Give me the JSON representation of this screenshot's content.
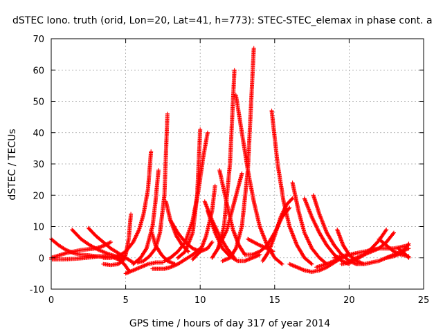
{
  "chart_data": {
    "type": "scatter",
    "title": "dSTEC Iono. truth (orid, Lon=20, Lat=41, h=773): STEC-STEC_elemax in phase cont. a",
    "xlabel": "GPS time / hours of day 317 of year 2014",
    "ylabel": "dSTEC  / TECUs",
    "xlim": [
      0,
      25
    ],
    "ylim": [
      -10,
      70
    ],
    "x_ticks": [
      "0",
      "5",
      "10",
      "15",
      "20",
      "25"
    ],
    "y_ticks": [
      "-10",
      "0",
      "10",
      "20",
      "30",
      "40",
      "50",
      "60",
      "70"
    ],
    "grid": true,
    "legend": "none",
    "marker": "+",
    "color": "#ff0000",
    "series": [
      {
        "x": [
          0.0,
          0.5,
          1.0,
          1.5,
          2.0,
          2.5,
          3.0,
          3.5,
          4.0
        ],
        "y": [
          6,
          4,
          2.5,
          1.5,
          1,
          0.8,
          0.5,
          0.3,
          0
        ]
      },
      {
        "x": [
          0.0,
          0.8,
          1.6,
          2.4,
          3.2,
          4.0,
          4.5,
          4.9,
          5.2
        ],
        "y": [
          -0.5,
          -0.5,
          -0.3,
          0,
          0.5,
          0.5,
          -0.5,
          -2,
          -4
        ]
      },
      {
        "x": [
          0.0,
          1.0,
          2.0,
          3.0,
          3.5,
          4.0
        ],
        "y": [
          0,
          1.5,
          2.5,
          3,
          3.8,
          5
        ]
      },
      {
        "x": [
          1.4,
          2.0,
          2.6,
          3.2,
          3.8,
          4.4,
          4.9
        ],
        "y": [
          9,
          6,
          4,
          2.5,
          1.3,
          0.4,
          -0.5
        ]
      },
      {
        "x": [
          2.5,
          3.0,
          3.5,
          4.0,
          4.5,
          5.0,
          5.5
        ],
        "y": [
          9.5,
          7,
          5,
          3,
          1.5,
          0,
          -1.5
        ]
      },
      {
        "x": [
          3.5,
          4.0,
          4.5,
          4.8,
          5.0,
          5.2,
          5.35
        ],
        "y": [
          -2,
          -2.3,
          -2,
          -1,
          1,
          6,
          14
        ]
      },
      {
        "x": [
          3.5,
          4.0,
          4.5,
          5.0,
          5.5,
          5.9,
          6.2,
          6.5,
          6.7
        ],
        "y": [
          0,
          0,
          0.5,
          2,
          5,
          9,
          14,
          22,
          34
        ]
      },
      {
        "x": [
          5.0,
          5.5,
          6.0,
          6.5,
          7.0,
          7.5
        ],
        "y": [
          -5,
          -4,
          -3,
          -2,
          -1.5,
          -1.5
        ]
      },
      {
        "x": [
          5.5,
          6.0,
          6.4,
          6.8,
          7.0,
          7.2
        ],
        "y": [
          -2,
          0,
          3,
          10,
          18,
          28
        ]
      },
      {
        "x": [
          5.8,
          6.2,
          6.6,
          7.0,
          7.3,
          7.6,
          7.8
        ],
        "y": [
          -1.5,
          -1,
          0.5,
          3,
          8,
          20,
          46
        ]
      },
      {
        "x": [
          6.7,
          7.0,
          7.4,
          7.8,
          8.3
        ],
        "y": [
          9,
          4,
          1,
          -1,
          -2
        ]
      },
      {
        "x": [
          6.8,
          7.2,
          7.6,
          8.0,
          8.5,
          9.0,
          9.5,
          10.0
        ],
        "y": [
          -3.5,
          -3.5,
          -3.5,
          -3,
          -2,
          -0.5,
          1,
          3
        ]
      },
      {
        "x": [
          7.7,
          8.0,
          8.4,
          8.8,
          9.2
        ],
        "y": [
          18,
          12,
          7,
          4,
          2
        ]
      },
      {
        "x": [
          7.6,
          8.0,
          8.5,
          9.0,
          9.5,
          9.9,
          10.2,
          10.5
        ],
        "y": [
          -1,
          0,
          2,
          5,
          12,
          22,
          32,
          40
        ]
      },
      {
        "x": [
          8.5,
          9.0,
          9.5,
          9.8,
          10.0
        ],
        "y": [
          0,
          2,
          8,
          20,
          41
        ]
      },
      {
        "x": [
          8.0,
          8.5,
          9.0,
          9.5,
          10.0,
          10.5,
          10.8
        ],
        "y": [
          12,
          8,
          5,
          3,
          2,
          3,
          5
        ]
      },
      {
        "x": [
          9.5,
          10.0,
          10.4,
          10.8,
          11.0
        ],
        "y": [
          -0.5,
          2,
          7,
          15,
          23
        ]
      },
      {
        "x": [
          10.3,
          10.8,
          11.3,
          11.8,
          12.3
        ],
        "y": [
          18,
          12,
          7,
          3,
          0
        ]
      },
      {
        "x": [
          10.5,
          11.0,
          11.5,
          12.0,
          12.5,
          13.0,
          13.5,
          14.0
        ],
        "y": [
          15,
          8,
          3,
          0.5,
          -1,
          -1,
          0,
          1
        ]
      },
      {
        "x": [
          10.8,
          11.2,
          11.6,
          12.0,
          12.3
        ],
        "y": [
          0,
          3,
          10,
          30,
          60
        ]
      },
      {
        "x": [
          11.3,
          11.8,
          12.2,
          12.6,
          13.0
        ],
        "y": [
          28,
          17,
          9,
          4,
          1
        ]
      },
      {
        "x": [
          11.5,
          12.0,
          12.4,
          12.8,
          13.2,
          13.6
        ],
        "y": [
          -1,
          0,
          3,
          10,
          28,
          67
        ]
      },
      {
        "x": [
          12.4,
          12.8,
          13.2,
          13.6,
          14.0,
          14.5,
          15.0,
          15.5
        ],
        "y": [
          52,
          40,
          28,
          18,
          10,
          4,
          0,
          -2
        ]
      },
      {
        "x": [
          11.2,
          11.8,
          12.3,
          12.8
        ],
        "y": [
          3,
          9,
          18,
          27
        ]
      },
      {
        "x": [
          13.2,
          14.0,
          14.5,
          14.9
        ],
        "y": [
          6,
          4,
          3,
          2
        ]
      },
      {
        "x": [
          13.0,
          13.5,
          14.0,
          14.5,
          15.0,
          15.5,
          16.0
        ],
        "y": [
          1,
          1,
          2,
          4,
          8,
          13,
          16
        ]
      },
      {
        "x": [
          14.2,
          14.6,
          15.0,
          15.4,
          15.8,
          16.2
        ],
        "y": [
          -1,
          2,
          7,
          13,
          17,
          19
        ]
      },
      {
        "x": [
          14.8,
          15.2,
          15.6,
          16.0,
          16.5,
          17.0,
          17.5
        ],
        "y": [
          47,
          30,
          18,
          10,
          4,
          0,
          -2
        ]
      },
      {
        "x": [
          16.2,
          16.6,
          17.0,
          17.5,
          18.0,
          18.5
        ],
        "y": [
          24,
          15,
          8,
          3,
          0,
          -2
        ]
      },
      {
        "x": [
          16.0,
          16.5,
          17.0,
          17.5,
          18.0,
          18.5,
          19.0,
          19.5
        ],
        "y": [
          -2,
          -3,
          -4,
          -4.5,
          -4,
          -3,
          -1.5,
          0
        ]
      },
      {
        "x": [
          17.0,
          17.5,
          18.0,
          18.5,
          19.0,
          19.5,
          20.0
        ],
        "y": [
          19,
          13,
          8,
          4,
          1,
          -1,
          -2
        ]
      },
      {
        "x": [
          17.6,
          18.0,
          18.5,
          19.0,
          19.5,
          20.0,
          20.5
        ],
        "y": [
          20,
          14,
          8,
          4,
          1,
          -1,
          -2
        ]
      },
      {
        "x": [
          17.8,
          18.5,
          19.0,
          19.5,
          20.0
        ],
        "y": [
          -3,
          -2,
          -1,
          0,
          1
        ]
      },
      {
        "x": [
          19.2,
          19.6,
          20.0,
          20.5,
          21.0
        ],
        "y": [
          9,
          4,
          1,
          -1,
          -2
        ]
      },
      {
        "x": [
          19.0,
          20.0,
          21.0,
          22.0,
          23.0,
          24.0
        ],
        "y": [
          0,
          1,
          2,
          3,
          3,
          4
        ]
      },
      {
        "x": [
          19.5,
          20.0,
          20.5,
          21.0,
          21.5,
          22.0,
          22.5
        ],
        "y": [
          -2,
          -1.5,
          -0.5,
          1,
          3,
          5.5,
          9
        ]
      },
      {
        "x": [
          20.0,
          20.5,
          21.0,
          21.5,
          22.0,
          22.5,
          23.0
        ],
        "y": [
          -1,
          0,
          1,
          2,
          3,
          5,
          8
        ]
      },
      {
        "x": [
          20.5,
          21.0,
          21.5,
          22.0,
          22.5,
          23.0,
          23.5,
          24.0
        ],
        "y": [
          -2,
          -2,
          -1.5,
          -1,
          0,
          1,
          2,
          3
        ]
      },
      {
        "x": [
          22.0,
          22.5,
          23.0,
          23.5,
          24.0
        ],
        "y": [
          6,
          4,
          2,
          1,
          0.5
        ]
      },
      {
        "x": [
          22.5,
          23.0,
          23.5,
          24.0
        ],
        "y": [
          0,
          0.5,
          1.5,
          4.5
        ]
      },
      {
        "x": [
          23.3,
          23.7,
          24.0
        ],
        "y": [
          3,
          1.5,
          0
        ]
      }
    ]
  }
}
